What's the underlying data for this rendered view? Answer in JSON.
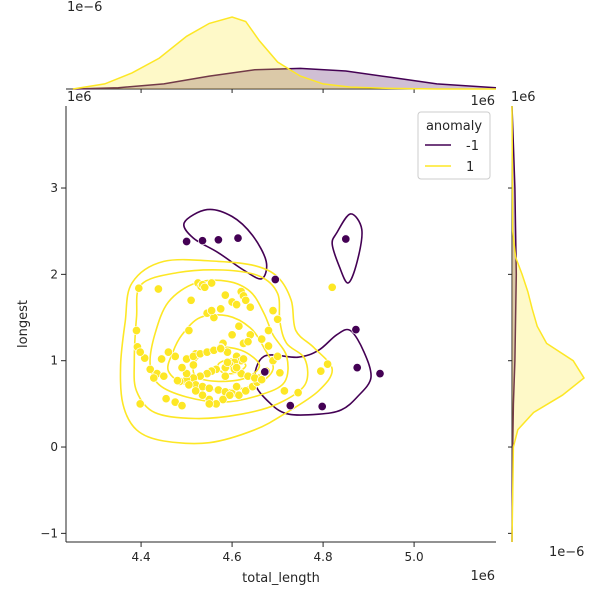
{
  "chart_data": {
    "type": "scatter",
    "title": "",
    "xlabel": "total_length",
    "ylabel": "longest",
    "x_offset_label": "1e6",
    "y_offset_label": "1e6",
    "top_marginal_offset_label": "1e−6",
    "top_marginal_right_label": "1e6",
    "right_marginal_top_label": "1e6",
    "right_marginal_bottom_label": "1e−6",
    "xlim": [
      4.235,
      5.18
    ],
    "ylim": [
      -1.1,
      3.95
    ],
    "xticks": [
      4.4,
      4.6,
      4.8,
      5.0
    ],
    "xtick_labels": [
      "4.4",
      "4.6",
      "4.8",
      "5.0"
    ],
    "yticks": [
      -1,
      0,
      1,
      2,
      3
    ],
    "ytick_labels": [
      "−1",
      "0",
      "1",
      "2",
      "3"
    ],
    "grid": false,
    "legend": {
      "title": "anomaly",
      "placement": "top-right",
      "entries": [
        {
          "label": "-1",
          "color": "#440154"
        },
        {
          "label": "1",
          "color": "#fde725"
        }
      ]
    },
    "series": [
      {
        "name": "-1",
        "color": "#440154",
        "x": [
          4.5,
          4.535,
          4.57,
          4.613,
          4.695,
          4.85,
          4.872,
          4.925,
          4.875,
          4.672,
          4.728,
          4.798
        ],
        "y": [
          2.38,
          2.39,
          2.4,
          2.42,
          1.94,
          2.41,
          1.36,
          0.85,
          0.92,
          0.87,
          0.48,
          0.47
        ]
      },
      {
        "name": "1",
        "color": "#fde725",
        "x": [
          4.395,
          4.408,
          4.435,
          4.42,
          4.392,
          4.39,
          4.398,
          4.455,
          4.428,
          4.438,
          4.398,
          4.475,
          4.49,
          4.45,
          4.505,
          4.51,
          4.525,
          4.532,
          4.535,
          4.54,
          4.515,
          4.52,
          4.545,
          4.56,
          4.555,
          4.555,
          4.575,
          4.585,
          4.6,
          4.61,
          4.62,
          4.625,
          4.63,
          4.64,
          4.615,
          4.6,
          4.58,
          4.575,
          4.59,
          4.61,
          4.62,
          4.605,
          4.595,
          4.585,
          4.565,
          4.555,
          4.545,
          4.53,
          4.515,
          4.5,
          4.485,
          4.48,
          4.5,
          4.52,
          4.535,
          4.55,
          4.57,
          4.585,
          4.6,
          4.615,
          4.63,
          4.645,
          4.655,
          4.66,
          4.67,
          4.675,
          4.69,
          4.7,
          4.705,
          4.68,
          4.665,
          4.64,
          4.625,
          4.61,
          4.595,
          4.58,
          4.565,
          4.55,
          4.535,
          4.52,
          4.505,
          4.49,
          4.475,
          4.46,
          4.445,
          4.5,
          4.515,
          4.53,
          4.545,
          4.56,
          4.575,
          4.59,
          4.605,
          4.62,
          4.635,
          4.65,
          4.665,
          4.68,
          4.7,
          4.715,
          4.745,
          4.795,
          4.81,
          4.82,
          4.55,
          4.585,
          4.61,
          4.625,
          4.69,
          4.635
        ],
        "y": [
          1.84,
          1.03,
          0.85,
          0.9,
          1.16,
          1.35,
          0.5,
          0.56,
          0.8,
          1.83,
          1.1,
          0.52,
          0.48,
          0.82,
          1.35,
          1.7,
          1.9,
          1.86,
          1.88,
          1.85,
          0.95,
          1.08,
          1.55,
          1.5,
          1.58,
          1.9,
          1.6,
          1.76,
          1.68,
          1.65,
          1.8,
          1.75,
          1.7,
          1.62,
          1.4,
          1.3,
          1.2,
          1.15,
          1.1,
          1.05,
          1.0,
          0.98,
          0.95,
          0.92,
          0.9,
          0.88,
          0.85,
          0.82,
          0.8,
          0.78,
          0.76,
          0.77,
          0.85,
          0.72,
          0.7,
          0.68,
          0.66,
          0.64,
          0.62,
          0.6,
          0.65,
          0.7,
          0.75,
          0.8,
          0.86,
          0.88,
          1.0,
          1.05,
          0.86,
          1.17,
          1.25,
          1.3,
          1.2,
          0.7,
          0.6,
          0.55,
          0.5,
          0.55,
          0.6,
          0.65,
          0.72,
          0.92,
          1.05,
          1.1,
          1.02,
          1.02,
          1.05,
          1.08,
          1.1,
          1.12,
          1.14,
          0.98,
          0.9,
          0.85,
          0.82,
          0.8,
          0.78,
          1.35,
          1.48,
          0.65,
          0.63,
          0.88,
          0.96,
          1.85,
          0.5,
          0.82,
          0.92,
          1.02,
          1.58,
          1.22
        ]
      }
    ],
    "kde_contours": [
      {
        "series": "-1",
        "color": "#440154",
        "curves": [
          [
            [
              4.495,
              2.6
            ],
            [
              4.545,
              2.75
            ],
            [
              4.6,
              2.67
            ],
            [
              4.645,
              2.45
            ],
            [
              4.675,
              2.15
            ],
            [
              4.665,
              1.95
            ],
            [
              4.625,
              2.05
            ],
            [
              4.57,
              2.25
            ],
            [
              4.515,
              2.42
            ],
            [
              4.495,
              2.6
            ]
          ],
          [
            [
              4.83,
              2.48
            ],
            [
              4.86,
              2.7
            ],
            [
              4.885,
              2.52
            ],
            [
              4.875,
              2.15
            ],
            [
              4.855,
              1.9
            ],
            [
              4.835,
              2.1
            ],
            [
              4.82,
              2.35
            ],
            [
              4.83,
              2.48
            ]
          ],
          [
            [
              4.67,
              1.05
            ],
            [
              4.745,
              1.04
            ],
            [
              4.79,
              1.12
            ],
            [
              4.83,
              1.3
            ],
            [
              4.86,
              1.35
            ],
            [
              4.89,
              1.1
            ],
            [
              4.905,
              0.8
            ],
            [
              4.875,
              0.58
            ],
            [
              4.84,
              0.43
            ],
            [
              4.79,
              0.38
            ],
            [
              4.725,
              0.38
            ],
            [
              4.685,
              0.5
            ],
            [
              4.65,
              0.75
            ],
            [
              4.67,
              1.05
            ]
          ]
        ]
      },
      {
        "series": "1",
        "color": "#fde725",
        "curves": [
          [
            [
              4.38,
              1.9
            ],
            [
              4.45,
              2.15
            ],
            [
              4.57,
              2.15
            ],
            [
              4.65,
              2.1
            ],
            [
              4.7,
              1.97
            ],
            [
              4.73,
              1.7
            ],
            [
              4.74,
              1.35
            ],
            [
              4.78,
              1.15
            ],
            [
              4.82,
              0.9
            ],
            [
              4.79,
              0.65
            ],
            [
              4.72,
              0.4
            ],
            [
              4.65,
              0.2
            ],
            [
              4.55,
              0.05
            ],
            [
              4.45,
              0.07
            ],
            [
              4.39,
              0.2
            ],
            [
              4.36,
              0.5
            ],
            [
              4.355,
              0.95
            ],
            [
              4.365,
              1.45
            ],
            [
              4.38,
              1.9
            ]
          ],
          [
            [
              4.4,
              1.88
            ],
            [
              4.48,
              2.02
            ],
            [
              4.58,
              2.05
            ],
            [
              4.66,
              1.98
            ],
            [
              4.7,
              1.78
            ],
            [
              4.705,
              1.45
            ],
            [
              4.72,
              1.2
            ],
            [
              4.76,
              1.02
            ],
            [
              4.76,
              0.72
            ],
            [
              4.7,
              0.5
            ],
            [
              4.62,
              0.38
            ],
            [
              4.52,
              0.33
            ],
            [
              4.43,
              0.4
            ],
            [
              4.39,
              0.65
            ],
            [
              4.385,
              1.0
            ],
            [
              4.39,
              1.5
            ],
            [
              4.4,
              1.88
            ]
          ],
          [
            [
              4.46,
              1.68
            ],
            [
              4.52,
              1.9
            ],
            [
              4.59,
              1.92
            ],
            [
              4.64,
              1.8
            ],
            [
              4.67,
              1.55
            ],
            [
              4.69,
              1.3
            ],
            [
              4.72,
              1.05
            ],
            [
              4.715,
              0.75
            ],
            [
              4.66,
              0.6
            ],
            [
              4.58,
              0.52
            ],
            [
              4.5,
              0.58
            ],
            [
              4.44,
              0.72
            ],
            [
              4.42,
              0.95
            ],
            [
              4.43,
              1.3
            ],
            [
              4.46,
              1.68
            ]
          ],
          [
            [
              4.49,
              1.3
            ],
            [
              4.53,
              1.5
            ],
            [
              4.59,
              1.52
            ],
            [
              4.64,
              1.38
            ],
            [
              4.67,
              1.15
            ],
            [
              4.69,
              0.9
            ],
            [
              4.65,
              0.72
            ],
            [
              4.58,
              0.66
            ],
            [
              4.5,
              0.72
            ],
            [
              4.46,
              0.88
            ],
            [
              4.47,
              1.1
            ],
            [
              4.49,
              1.3
            ]
          ],
          [
            [
              4.52,
              1.0
            ],
            [
              4.56,
              1.15
            ],
            [
              4.62,
              1.12
            ],
            [
              4.66,
              0.95
            ],
            [
              4.63,
              0.8
            ],
            [
              4.57,
              0.76
            ],
            [
              4.52,
              0.82
            ],
            [
              4.52,
              1.0
            ]
          ],
          [
            [
              4.57,
              0.96
            ],
            [
              4.6,
              1.02
            ],
            [
              4.63,
              0.95
            ],
            [
              4.61,
              0.86
            ],
            [
              4.58,
              0.86
            ],
            [
              4.57,
              0.96
            ]
          ]
        ]
      }
    ],
    "marginal_x": {
      "series": [
        {
          "name": "-1",
          "color": "#440154",
          "x": [
            4.25,
            4.35,
            4.45,
            4.55,
            4.65,
            4.75,
            4.85,
            4.95,
            5.05,
            5.18
          ],
          "density": [
            0.0,
            0.02,
            0.08,
            0.2,
            0.3,
            0.32,
            0.28,
            0.18,
            0.08,
            0.02
          ]
        },
        {
          "name": "1",
          "color": "#fde725",
          "x": [
            4.25,
            4.32,
            4.38,
            4.44,
            4.5,
            4.55,
            4.6,
            4.63,
            4.66,
            4.7,
            4.75,
            4.8,
            4.86,
            4.95,
            5.05,
            5.18
          ],
          "density": [
            0.0,
            0.08,
            0.25,
            0.48,
            0.82,
            1.02,
            1.12,
            1.05,
            0.75,
            0.42,
            0.2,
            0.08,
            0.03,
            0.01,
            0.0,
            0.0
          ]
        }
      ]
    },
    "marginal_y": {
      "series": [
        {
          "name": "-1",
          "color": "#440154",
          "y": [
            -1.1,
            0.0,
            0.5,
            1.0,
            1.5,
            2.0,
            2.5,
            3.0,
            3.5,
            3.95
          ],
          "density": [
            0.0,
            0.01,
            0.02,
            0.04,
            0.05,
            0.06,
            0.05,
            0.04,
            0.02,
            0.0
          ]
        },
        {
          "name": "1",
          "color": "#fde725",
          "y": [
            -1.1,
            0.0,
            0.2,
            0.4,
            0.6,
            0.8,
            1.0,
            1.2,
            1.4,
            1.6,
            1.8,
            2.0,
            2.2,
            2.5,
            3.95
          ],
          "density": [
            0.0,
            0.02,
            0.08,
            0.3,
            0.7,
            1.0,
            0.85,
            0.48,
            0.35,
            0.28,
            0.22,
            0.14,
            0.05,
            0.01,
            0.0
          ]
        }
      ]
    }
  }
}
